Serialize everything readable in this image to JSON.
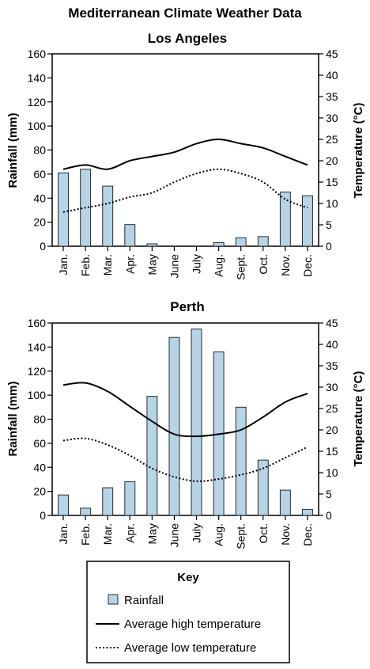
{
  "figure": {
    "title": "Mediterranean Climate Weather Data"
  },
  "key": {
    "title": "Key",
    "rainfall_label": "Rainfall",
    "high_label": "Average high temperature",
    "low_label": "Average low temperature"
  },
  "colors": {
    "bar_fill": "#b7d3e6",
    "bar_stroke": "#2b2b2b",
    "line": "#000000"
  },
  "chart_data": [
    {
      "type": "bar",
      "title": "Los Angeles",
      "ylabel": "Rainfall (mm)",
      "y2label": "Temperature (°C)",
      "ylim": [
        0,
        160
      ],
      "yticks": [
        0,
        20,
        40,
        60,
        80,
        100,
        120,
        140,
        160
      ],
      "y2lim": [
        0,
        45
      ],
      "y2ticks": [
        0,
        5,
        10,
        15,
        20,
        25,
        30,
        35,
        40,
        45
      ],
      "categories": [
        "Jan.",
        "Feb.",
        "Mar.",
        "Apr.",
        "May",
        "June",
        "July",
        "Aug.",
        "Sept.",
        "Oct.",
        "Nov.",
        "Dec."
      ],
      "series": [
        {
          "name": "Rainfall",
          "type": "bar",
          "axis": "left",
          "values": [
            61,
            64,
            50,
            18,
            2,
            0,
            0,
            3,
            7,
            8,
            45,
            42
          ]
        },
        {
          "name": "Average high temperature",
          "type": "line",
          "style": "solid",
          "axis": "right",
          "values": [
            18,
            19,
            18,
            20,
            21,
            22,
            24,
            25,
            24,
            23,
            21,
            19
          ]
        },
        {
          "name": "Average low temperature",
          "type": "line",
          "style": "dotted",
          "axis": "right",
          "values": [
            8,
            9,
            10,
            11.5,
            12.5,
            15,
            17,
            18,
            17,
            15,
            11,
            9
          ]
        }
      ]
    },
    {
      "type": "bar",
      "title": "Perth",
      "ylabel": "Rainfall (mm)",
      "y2label": "Temperature (°C)",
      "ylim": [
        0,
        160
      ],
      "yticks": [
        0,
        20,
        40,
        60,
        80,
        100,
        120,
        140,
        160
      ],
      "y2lim": [
        0,
        45
      ],
      "y2ticks": [
        0,
        5,
        10,
        15,
        20,
        25,
        30,
        35,
        40,
        45
      ],
      "categories": [
        "Jan.",
        "Feb.",
        "Mar.",
        "Apr.",
        "May",
        "June",
        "July",
        "Aug.",
        "Sept.",
        "Oct.",
        "Nov.",
        "Dec."
      ],
      "series": [
        {
          "name": "Rainfall",
          "type": "bar",
          "axis": "left",
          "values": [
            17,
            6,
            23,
            28,
            99,
            148,
            155,
            136,
            90,
            46,
            21,
            5
          ]
        },
        {
          "name": "Average high temperature",
          "type": "line",
          "style": "solid",
          "axis": "right",
          "values": [
            30.5,
            31,
            29,
            25.5,
            22,
            19,
            18.5,
            19,
            20,
            23,
            26.5,
            28.5
          ]
        },
        {
          "name": "Average low temperature",
          "type": "line",
          "style": "dotted",
          "axis": "right",
          "values": [
            17.5,
            18,
            16.5,
            14,
            11,
            9,
            8,
            8.5,
            9.5,
            11,
            13.5,
            16
          ]
        }
      ]
    }
  ]
}
